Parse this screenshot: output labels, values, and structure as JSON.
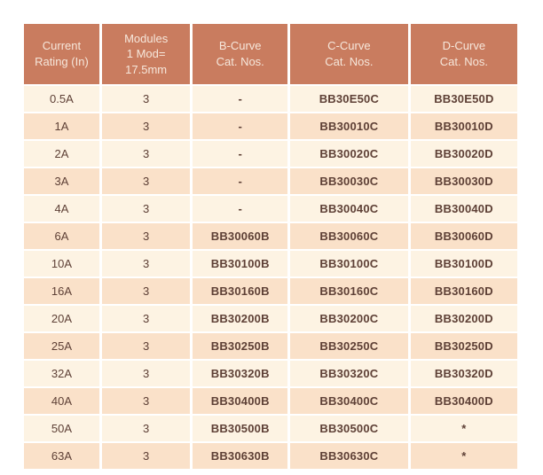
{
  "page": {
    "background": "#ffffff"
  },
  "table": {
    "title": "mcb-catalog-numbers-table",
    "columns": [
      {
        "label": "Current\nRating (In)"
      },
      {
        "label": "Modules\n1 Mod=\n17.5mm"
      },
      {
        "label": "B-Curve\nCat. Nos."
      },
      {
        "label": "C-Curve\nCat. Nos."
      },
      {
        "label": "D-Curve\nCat. Nos."
      }
    ],
    "rows": [
      [
        "0.5A",
        "3",
        "-",
        "BB30E50C",
        "BB30E50D"
      ],
      [
        "1A",
        "3",
        "-",
        "BB30010C",
        "BB30010D"
      ],
      [
        "2A",
        "3",
        "-",
        "BB30020C",
        "BB30020D"
      ],
      [
        "3A",
        "3",
        "-",
        "BB30030C",
        "BB30030D"
      ],
      [
        "4A",
        "3",
        "-",
        "BB30040C",
        "BB30040D"
      ],
      [
        "6A",
        "3",
        "BB30060B",
        "BB30060C",
        "BB30060D"
      ],
      [
        "10A",
        "3",
        "BB30100B",
        "BB30100C",
        "BB30100D"
      ],
      [
        "16A",
        "3",
        "BB30160B",
        "BB30160C",
        "BB30160D"
      ],
      [
        "20A",
        "3",
        "BB30200B",
        "BB30200C",
        "BB30200D"
      ],
      [
        "25A",
        "3",
        "BB30250B",
        "BB30250C",
        "BB30250D"
      ],
      [
        "32A",
        "3",
        "BB30320B",
        "BB30320C",
        "BB30320D"
      ],
      [
        "40A",
        "3",
        "BB30400B",
        "BB30400C",
        "BB30400D"
      ],
      [
        "50A",
        "3",
        "BB30500B",
        "BB30500C",
        "*"
      ],
      [
        "63A",
        "3",
        "BB30630B",
        "BB30630C",
        "*"
      ]
    ],
    "colors": {
      "header_bg": "#c97c5f",
      "header_text": "#f6e7db",
      "row_light": "#fdf3e3",
      "row_dark": "#fae1c9",
      "cell_text": "#5e4036"
    },
    "column_widths_percent": [
      15.6,
      18.3,
      19.6,
      24.4,
      22.1
    ]
  }
}
